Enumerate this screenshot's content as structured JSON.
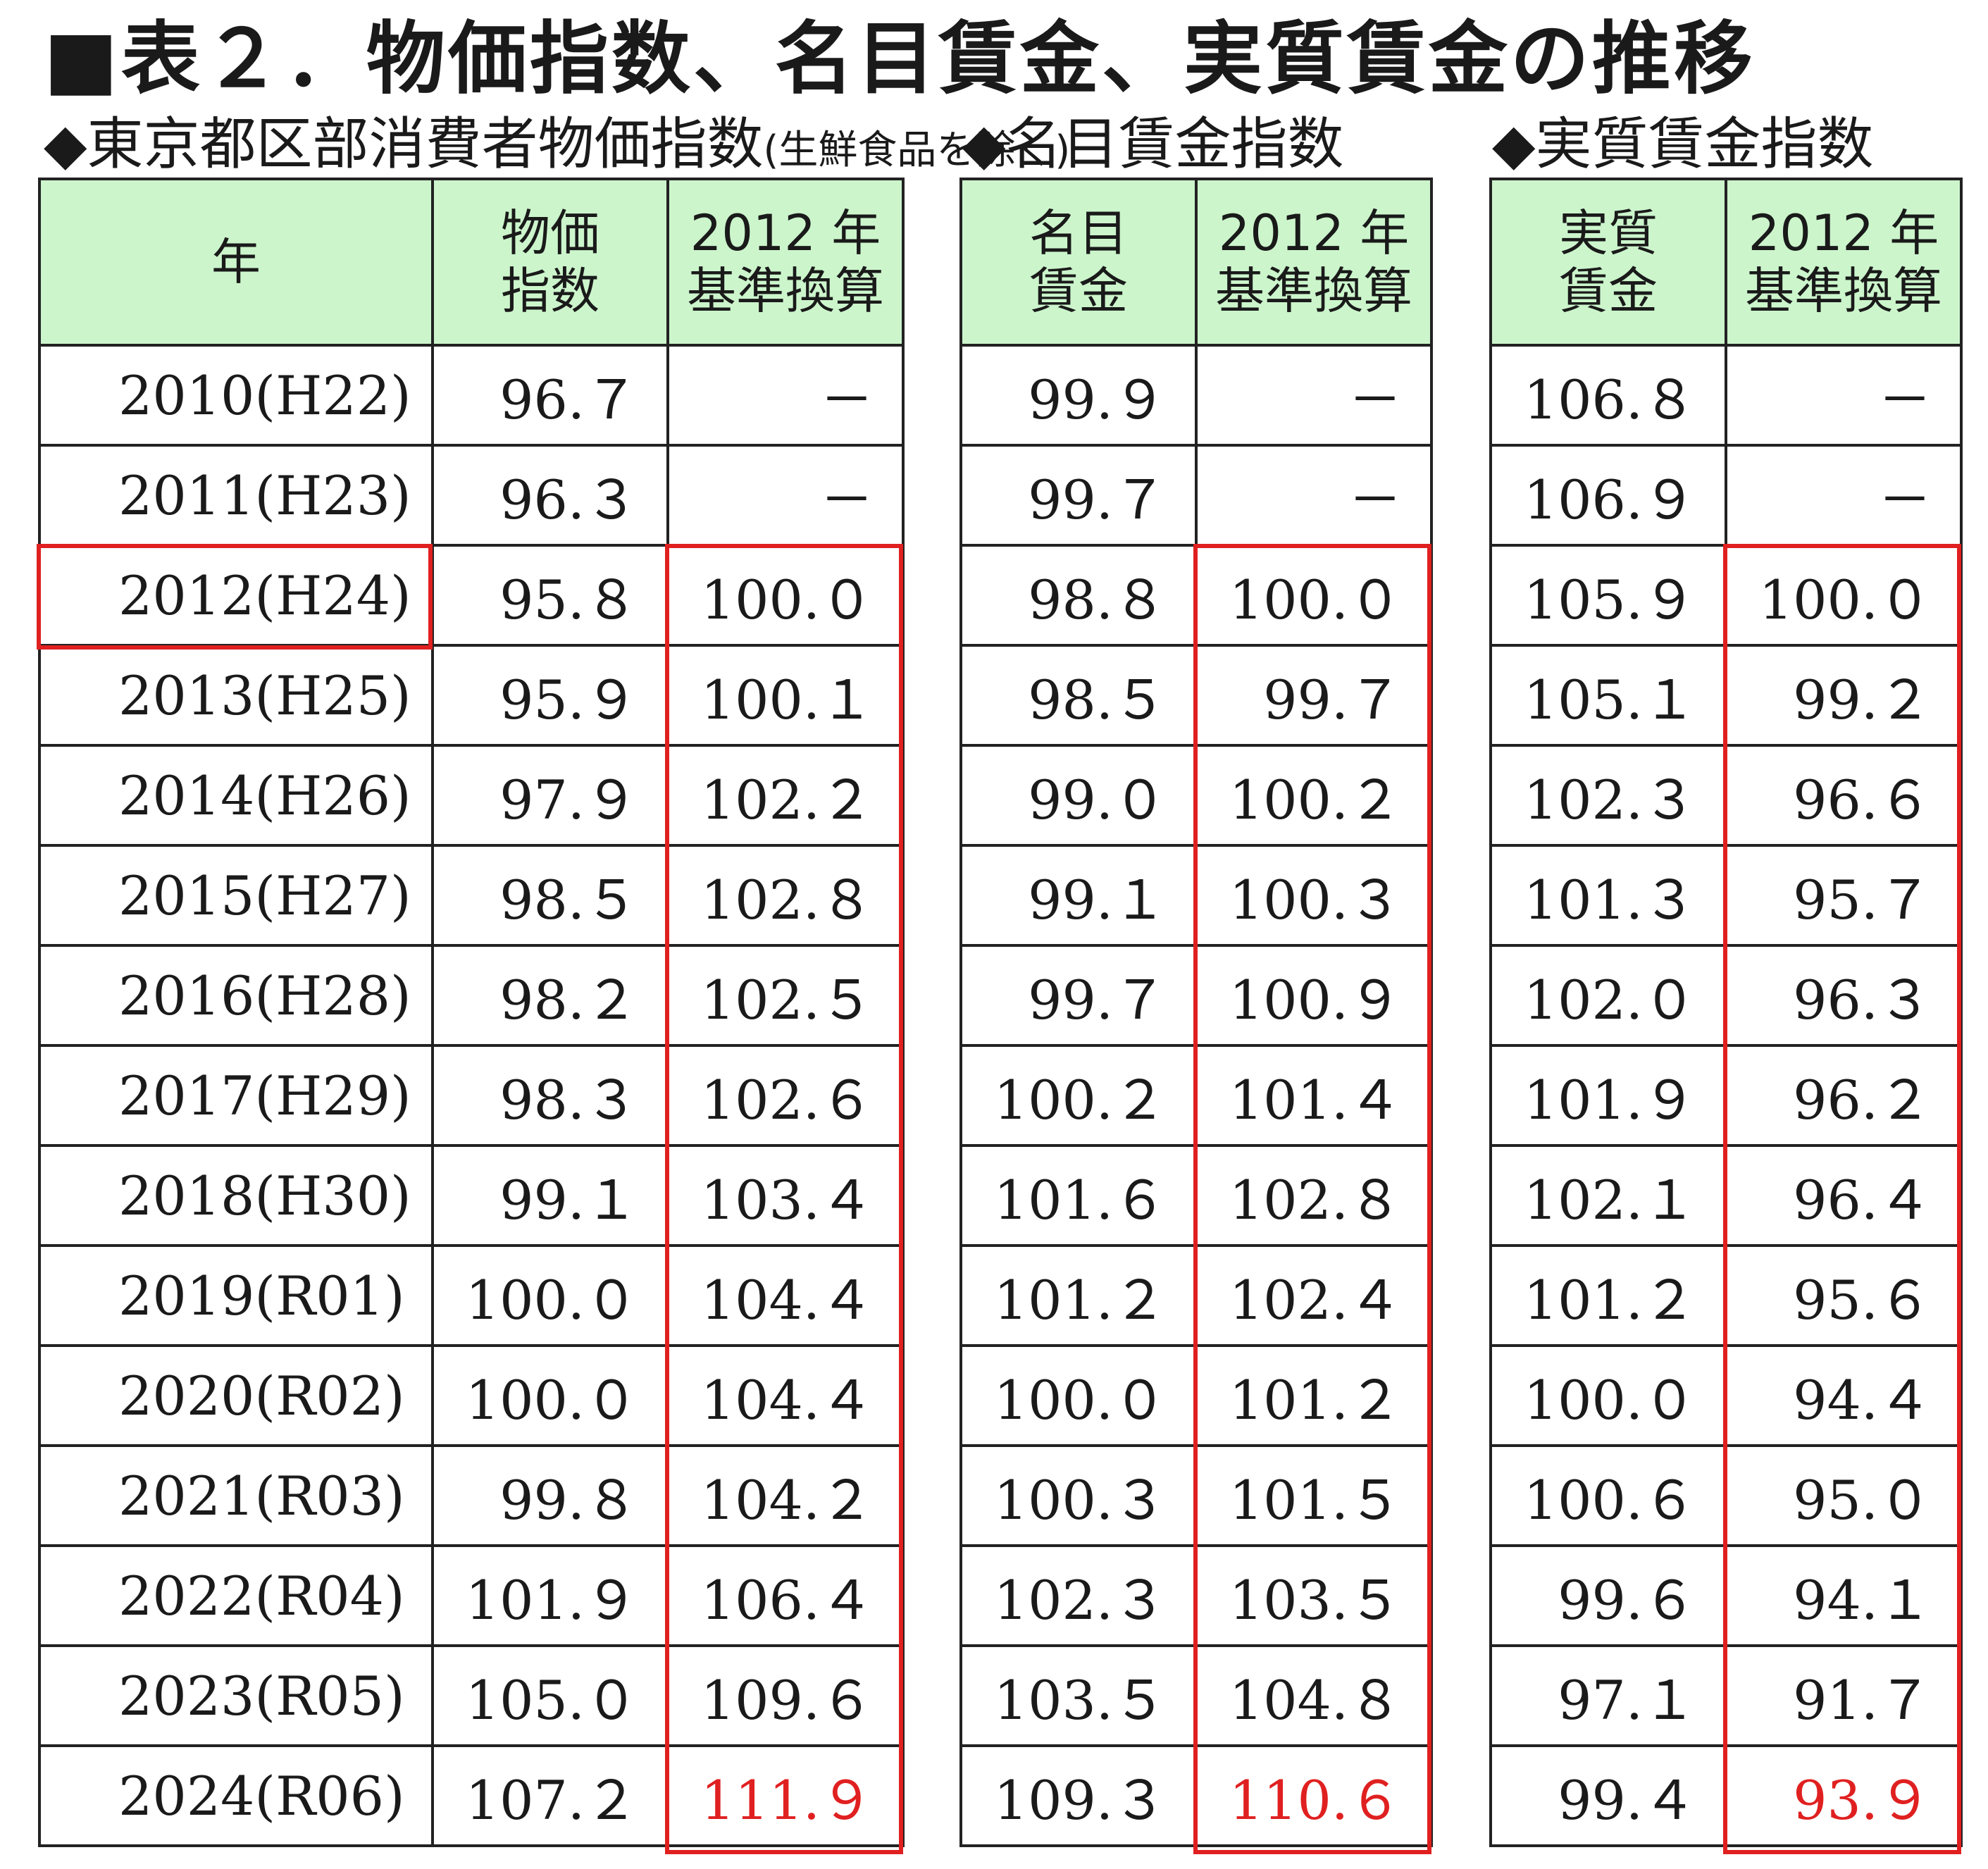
{
  "title": "■表２．物価指数、名目賃金、実質賃金の推移",
  "sections": {
    "cpi": {
      "label": "◆東京都区部消費者物価指数",
      "note": "(生鮮食品を除く)"
    },
    "nominal": {
      "label": "◆名目賃金指数"
    },
    "real": {
      "label": "◆実質賃金指数"
    }
  },
  "headers": {
    "year": "年",
    "cpi": "物価\n指数",
    "nominal": "名目\n賃金",
    "real": "実質\n賃金",
    "rebase": "2012 年\n基準換算"
  },
  "highlight_color": "#e02020",
  "header_bg": "#ccf5cc",
  "rows": [
    {
      "year": "2010(H22)",
      "cpi": "96.７",
      "cpi_2012": "－",
      "nominal": "99.９",
      "nominal_2012": "－",
      "real": "106.８",
      "real_2012": "－"
    },
    {
      "year": "2011(H23)",
      "cpi": "96.３",
      "cpi_2012": "－",
      "nominal": "99.７",
      "nominal_2012": "－",
      "real": "106.９",
      "real_2012": "－"
    },
    {
      "year": "2012(H24)",
      "cpi": "95.８",
      "cpi_2012": "100.０",
      "nominal": "98.８",
      "nominal_2012": "100.０",
      "real": "105.９",
      "real_2012": "100.０"
    },
    {
      "year": "2013(H25)",
      "cpi": "95.９",
      "cpi_2012": "100.１",
      "nominal": "98.５",
      "nominal_2012": "99.７",
      "real": "105.１",
      "real_2012": "99.２"
    },
    {
      "year": "2014(H26)",
      "cpi": "97.９",
      "cpi_2012": "102.２",
      "nominal": "99.０",
      "nominal_2012": "100.２",
      "real": "102.３",
      "real_2012": "96.６"
    },
    {
      "year": "2015(H27)",
      "cpi": "98.５",
      "cpi_2012": "102.８",
      "nominal": "99.１",
      "nominal_2012": "100.３",
      "real": "101.３",
      "real_2012": "95.７"
    },
    {
      "year": "2016(H28)",
      "cpi": "98.２",
      "cpi_2012": "102.５",
      "nominal": "99.７",
      "nominal_2012": "100.９",
      "real": "102.０",
      "real_2012": "96.３"
    },
    {
      "year": "2017(H29)",
      "cpi": "98.３",
      "cpi_2012": "102.６",
      "nominal": "100.２",
      "nominal_2012": "101.４",
      "real": "101.９",
      "real_2012": "96.２"
    },
    {
      "year": "2018(H30)",
      "cpi": "99.１",
      "cpi_2012": "103.４",
      "nominal": "101.６",
      "nominal_2012": "102.８",
      "real": "102.１",
      "real_2012": "96.４"
    },
    {
      "year": "2019(R01)",
      "cpi": "100.０",
      "cpi_2012": "104.４",
      "nominal": "101.２",
      "nominal_2012": "102.４",
      "real": "101.２",
      "real_2012": "95.６"
    },
    {
      "year": "2020(R02)",
      "cpi": "100.０",
      "cpi_2012": "104.４",
      "nominal": "100.０",
      "nominal_2012": "101.２",
      "real": "100.０",
      "real_2012": "94.４"
    },
    {
      "year": "2021(R03)",
      "cpi": "99.８",
      "cpi_2012": "104.２",
      "nominal": "100.３",
      "nominal_2012": "101.５",
      "real": "100.６",
      "real_2012": "95.０"
    },
    {
      "year": "2022(R04)",
      "cpi": "101.９",
      "cpi_2012": "106.４",
      "nominal": "102.３",
      "nominal_2012": "103.５",
      "real": "99.６",
      "real_2012": "94.１"
    },
    {
      "year": "2023(R05)",
      "cpi": "105.０",
      "cpi_2012": "109.６",
      "nominal": "103.５",
      "nominal_2012": "104.８",
      "real": "97.１",
      "real_2012": "91.７"
    },
    {
      "year": "2024(R06)",
      "cpi": "107.２",
      "cpi_2012": "111.９",
      "nominal": "109.３",
      "nominal_2012": "110.６",
      "real": "99.４",
      "real_2012": "93.９"
    }
  ]
}
